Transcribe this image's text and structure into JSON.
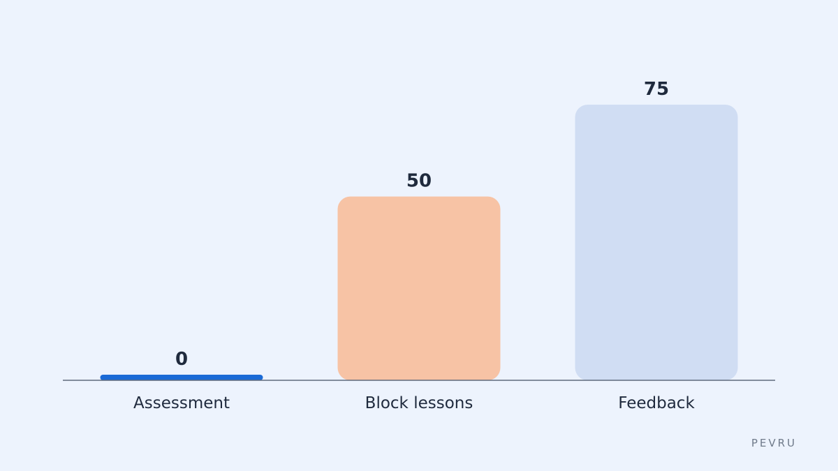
{
  "chart_data": {
    "type": "bar",
    "categories": [
      "Assessment",
      "Block lessons",
      "Feedback"
    ],
    "values": [
      0,
      50,
      75
    ],
    "value_labels": [
      "0",
      "50",
      "75"
    ],
    "colors": [
      "#1a6ad6",
      "#f7c3a5",
      "#d0ddf3"
    ],
    "title": "",
    "xlabel": "",
    "ylabel": "",
    "ylim": [
      0,
      75
    ],
    "grid": false,
    "legend": "none"
  },
  "brand": {
    "label": "PEVRU"
  }
}
